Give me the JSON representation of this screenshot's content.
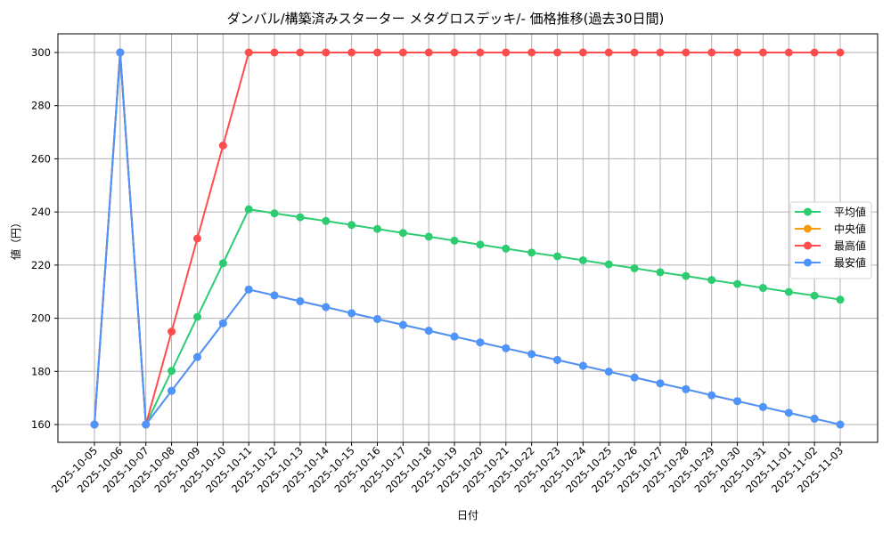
{
  "chart_data": {
    "type": "line",
    "title": "ダンバル/構築済みスターター メタグロスデッキ/- 価格推移(過去30日間)",
    "xlabel": "日付",
    "ylabel": "値（円）",
    "ylim": [
      153,
      307
    ],
    "yticks": [
      160,
      180,
      200,
      220,
      240,
      260,
      280,
      300
    ],
    "grid": true,
    "legend_position": "center right",
    "x": [
      "2025-10-05",
      "2025-10-06",
      "2025-10-07",
      "2025-10-08",
      "2025-10-09",
      "2025-10-10",
      "2025-10-11",
      "2025-10-12",
      "2025-10-13",
      "2025-10-14",
      "2025-10-15",
      "2025-10-16",
      "2025-10-17",
      "2025-10-18",
      "2025-10-19",
      "2025-10-20",
      "2025-10-21",
      "2025-10-22",
      "2025-10-23",
      "2025-10-24",
      "2025-10-25",
      "2025-10-26",
      "2025-10-27",
      "2025-10-28",
      "2025-10-29",
      "2025-10-30",
      "2025-10-31",
      "2025-11-01",
      "2025-11-02",
      "2025-11-03"
    ],
    "series": [
      {
        "name": "平均値",
        "color": "#2ecc71",
        "values": [
          160,
          300,
          160,
          180.2,
          200.5,
          220.7,
          241.0,
          239.5,
          238.0,
          236.6,
          235.1,
          233.6,
          232.1,
          230.7,
          229.2,
          227.7,
          226.2,
          224.7,
          223.3,
          221.8,
          220.3,
          218.8,
          217.3,
          215.9,
          214.4,
          212.9,
          211.4,
          209.9,
          208.5,
          207.0
        ]
      },
      {
        "name": "中央値",
        "color": "#f39c12",
        "values": [
          160,
          300,
          160,
          172.7,
          185.4,
          198.1,
          210.8,
          208.6,
          206.4,
          204.2,
          201.9,
          199.7,
          197.5,
          195.3,
          193.1,
          190.9,
          188.7,
          186.5,
          184.3,
          182.1,
          179.9,
          177.7,
          175.5,
          173.3,
          171.0,
          168.8,
          166.6,
          164.4,
          162.2,
          160.0
        ]
      },
      {
        "name": "最高値",
        "color": "#ff4d4d",
        "values": [
          160,
          300,
          160,
          195,
          230,
          265,
          300,
          300,
          300,
          300,
          300,
          300,
          300,
          300,
          300,
          300,
          300,
          300,
          300,
          300,
          300,
          300,
          300,
          300,
          300,
          300,
          300,
          300,
          300,
          300
        ]
      },
      {
        "name": "最安値",
        "color": "#4d94ff",
        "values": [
          160,
          300,
          160,
          172.7,
          185.4,
          198.1,
          210.8,
          208.6,
          206.4,
          204.2,
          201.9,
          199.7,
          197.5,
          195.3,
          193.1,
          190.9,
          188.7,
          186.5,
          184.3,
          182.1,
          179.9,
          177.7,
          175.5,
          173.3,
          171.0,
          168.8,
          166.6,
          164.4,
          162.2,
          160.0
        ]
      }
    ]
  }
}
